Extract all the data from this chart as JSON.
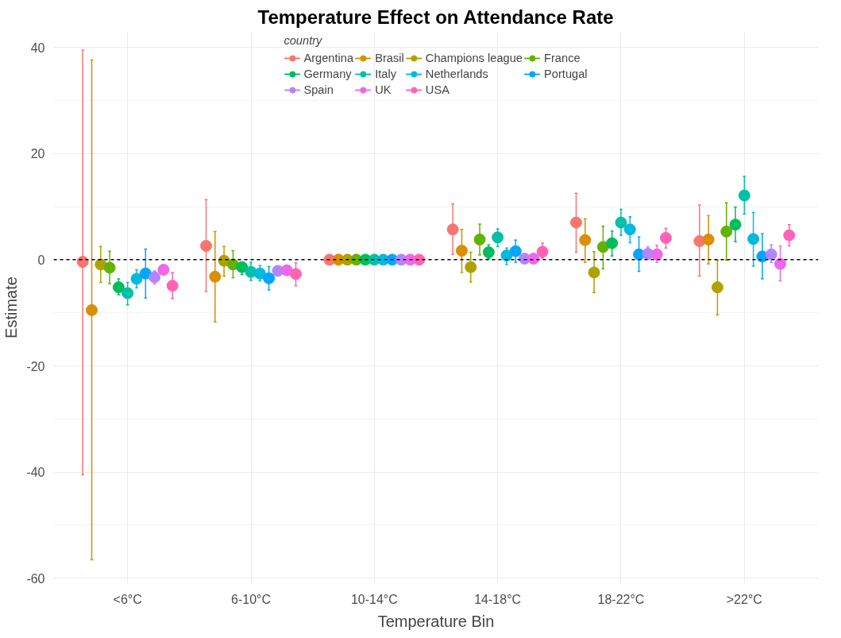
{
  "chart_data": {
    "type": "scatter",
    "title": "Temperature Effect on Attendance Rate",
    "xlabel": "Temperature Bin",
    "ylabel": "Estimate",
    "legend_title": "country",
    "categories": [
      "<6°C",
      "6-10°C",
      "10-14°C",
      "14-18°C",
      "18-22°C",
      ">22°C"
    ],
    "ylim": [
      -61,
      43
    ],
    "yticks": [
      -60,
      -40,
      -20,
      0,
      20,
      40
    ],
    "grid": true,
    "legend": "top",
    "marker": "circle",
    "ref_lines": [
      {
        "axis": "y",
        "value": 0,
        "label": null,
        "color": "#000000",
        "line_style": "dashed"
      }
    ],
    "series": [
      {
        "name": "Argentina",
        "color": "#f8766d",
        "values": [
          -0.4,
          2.6,
          0,
          5.7,
          7.0,
          3.5
        ],
        "errors": [
          [
            -40.5,
            39.5
          ],
          [
            -6.0,
            11.3
          ],
          null,
          [
            1.0,
            10.5
          ],
          [
            1.4,
            12.5
          ],
          [
            -3.1,
            10.3
          ]
        ]
      },
      {
        "name": "Brasil",
        "color": "#db8e00",
        "values": [
          -9.5,
          -3.2,
          0,
          1.7,
          3.7,
          3.8
        ],
        "errors": [
          [
            -56.5,
            37.6
          ],
          [
            -11.7,
            5.3
          ],
          null,
          [
            -2.4,
            5.7
          ],
          [
            -0.5,
            7.7
          ],
          [
            -0.8,
            8.3
          ]
        ]
      },
      {
        "name": "Champions league",
        "color": "#aea200",
        "values": [
          -0.9,
          -0.2,
          0,
          -1.4,
          -2.4,
          -5.2
        ],
        "errors": [
          [
            -4.3,
            2.5
          ],
          [
            -3.1,
            2.5
          ],
          null,
          [
            -4.2,
            1.4
          ],
          [
            -6.2,
            1.5
          ],
          [
            -10.4,
            -0.1
          ]
        ]
      },
      {
        "name": "France",
        "color": "#64b200",
        "values": [
          -1.5,
          -0.9,
          0,
          3.8,
          2.4,
          5.3
        ],
        "errors": [
          [
            -4.5,
            1.6
          ],
          [
            -3.4,
            1.7
          ],
          null,
          [
            0.9,
            6.7
          ],
          [
            -1.7,
            6.3
          ],
          [
            -0.1,
            10.7
          ]
        ]
      },
      {
        "name": "Germany",
        "color": "#00bd5c",
        "values": [
          -5.2,
          -1.4,
          0,
          1.4,
          3.1,
          6.6
        ],
        "errors": [
          [
            -6.6,
            -3.6
          ],
          [
            -2.8,
            -0.5
          ],
          null,
          [
            0.2,
            2.8
          ],
          [
            0.7,
            5.4
          ],
          [
            3.4,
            9.9
          ]
        ]
      },
      {
        "name": "Italy",
        "color": "#00c1a7",
        "values": [
          -6.3,
          -2.3,
          0,
          4.2,
          7.0,
          12.1
        ],
        "errors": [
          [
            -8.5,
            -4.3
          ],
          [
            -3.9,
            -0.5
          ],
          null,
          [
            2.5,
            5.8
          ],
          [
            4.6,
            9.5
          ],
          [
            8.6,
            15.7
          ]
        ]
      },
      {
        "name": "Netherlands",
        "color": "#00bade",
        "values": [
          -3.6,
          -2.6,
          0,
          0.8,
          5.7,
          3.9
        ],
        "errors": [
          [
            -5.3,
            -1.9
          ],
          [
            -4.0,
            -1.1
          ],
          null,
          [
            -0.9,
            2.2
          ],
          [
            3.2,
            8.1
          ],
          [
            -1.2,
            8.9
          ]
        ]
      },
      {
        "name": "Portugal",
        "color": "#00a6ff",
        "values": [
          -2.6,
          -3.5,
          0,
          1.6,
          1.0,
          0.6
        ],
        "errors": [
          [
            -7.2,
            2.0
          ],
          [
            -5.7,
            -1.3
          ],
          null,
          [
            -0.5,
            3.7
          ],
          [
            -2.2,
            4.3
          ],
          [
            -3.6,
            4.9
          ]
        ]
      },
      {
        "name": "Spain",
        "color": "#b385ff",
        "values": [
          -3.3,
          -2.1,
          0,
          0.2,
          1.1,
          1.0
        ],
        "errors": [
          [
            -4.6,
            -2.1
          ],
          null,
          null,
          null,
          [
            0.1,
            2.4
          ],
          [
            -0.5,
            2.8
          ]
        ]
      },
      {
        "name": "UK",
        "color": "#ef67eb",
        "values": [
          -1.9,
          -2.0,
          0,
          0.2,
          1.0,
          -0.8
        ],
        "errors": [
          null,
          null,
          null,
          null,
          [
            -0.5,
            2.7
          ],
          [
            -4.0,
            2.6
          ]
        ]
      },
      {
        "name": "USA",
        "color": "#ff63b6",
        "values": [
          -4.9,
          -2.7,
          0,
          1.5,
          4.1,
          4.6
        ],
        "errors": [
          [
            -7.3,
            -2.4
          ],
          [
            -4.9,
            -0.6
          ],
          null,
          [
            0.3,
            3.1
          ],
          [
            2.2,
            5.9
          ],
          [
            2.6,
            6.6
          ]
        ]
      }
    ]
  }
}
